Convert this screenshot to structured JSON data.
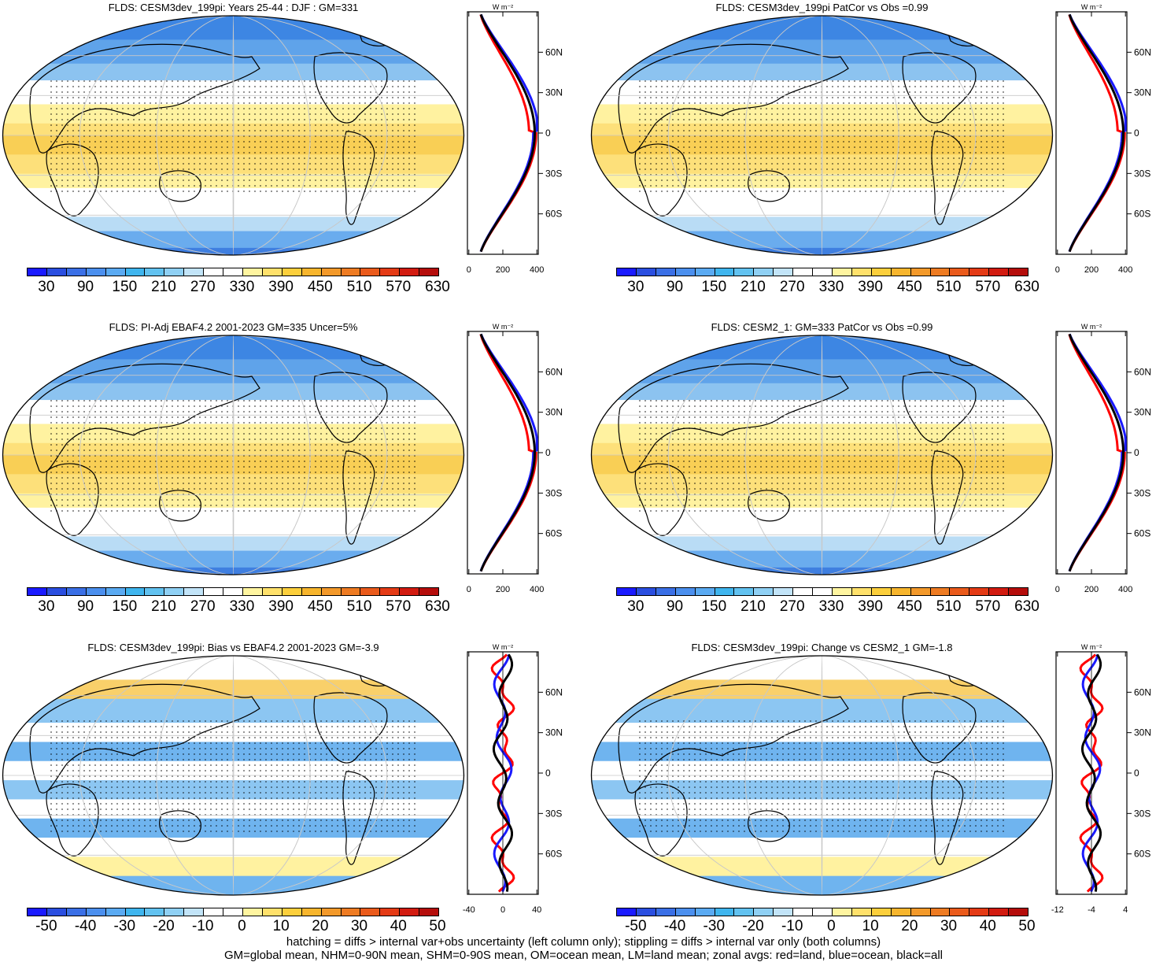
{
  "panels": [
    {
      "title": "FLDS: CESM3dev_199pi: Years 25-44 : DJF : GM=331",
      "scale": "abs",
      "zonal_axis": [
        "0",
        "200",
        "400"
      ],
      "unit": "W m⁻²"
    },
    {
      "title": "FLDS: CESM3dev_199pi PatCor vs Obs =0.99",
      "scale": "abs",
      "zonal_axis": [
        "0",
        "200",
        "400"
      ],
      "unit": "W m⁻²"
    },
    {
      "title": "FLDS: PI-Adj EBAF4.2 2001-2023 GM=335 Uncer=5%",
      "scale": "abs",
      "zonal_axis": [
        "0",
        "200",
        "400"
      ],
      "unit": "W m⁻²"
    },
    {
      "title": "FLDS: CESM2_1: GM=333 PatCor vs Obs =0.99",
      "scale": "abs",
      "zonal_axis": [
        "0",
        "200",
        "400"
      ],
      "unit": "W m⁻²"
    },
    {
      "title": "FLDS: CESM3dev_199pi: Bias vs EBAF4.2 2001-2023 GM=-3.9",
      "scale": "diff",
      "zonal_axis": [
        "-40",
        "0",
        "40"
      ],
      "unit": "W m⁻²"
    },
    {
      "title": "FLDS: CESM3dev_199pi: Change vs CESM2_1 GM=-1.8",
      "scale": "diff",
      "zonal_axis": [
        "-12",
        "-4",
        "4"
      ],
      "unit": "W m⁻²"
    }
  ],
  "lat_labels": [
    "60N",
    "30N",
    "0",
    "30S",
    "60S"
  ],
  "colorbar_abs_labels": [
    "30",
    "90",
    "150",
    "210",
    "270",
    "330",
    "390",
    "450",
    "510",
    "570",
    "630"
  ],
  "colorbar_diff_labels": [
    "-50",
    "-40",
    "-30",
    "-20",
    "-10",
    "0",
    "10",
    "20",
    "30",
    "40",
    "50"
  ],
  "colorbar_colors": [
    "#1a1aff",
    "#2a4ee0",
    "#3a6fe6",
    "#4b8fee",
    "#5aaaf2",
    "#3fb5ee",
    "#62c2f0",
    "#8fd0f4",
    "#c2e4f8",
    "#ffffff",
    "#ffffff",
    "#fff5a0",
    "#ffe16b",
    "#fccf3c",
    "#f7b52d",
    "#f3992a",
    "#ee7b22",
    "#ea5a1b",
    "#e43a15",
    "#d21b10",
    "#b50d0b"
  ],
  "zonal_series": [
    "land (red)",
    "ocean (blue)",
    "all (black)"
  ],
  "series_colors": {
    "land": "#ff0000",
    "ocean": "#1a1aff",
    "all": "#000000"
  },
  "footer": {
    "line1": "hatching = diffs > internal var+obs uncertainty (left column only); stippling = diffs > internal var only (both columns)",
    "line2": "GM=global mean, NHM=0-90N mean, SHM=0-90S mean, OM=ocean mean, LM=land mean; zonal avgs: red=land, blue=ocean, black=all"
  }
}
